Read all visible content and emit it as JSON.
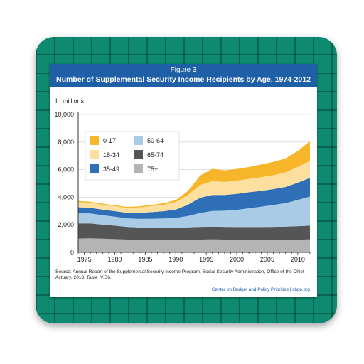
{
  "card": {
    "figure_label": "Figure 3",
    "title": "Number of Supplemental Security Income Recipients by Age, 1974-2012",
    "source": "Source: Annual Report of the Supplemental Security Income Program, Social Security Administration, Office of the Chief Actuary, 2013. Table IV.B6.",
    "credit": "Center on Budget and Policy Priorities | cbpp.org"
  },
  "chart_data": {
    "type": "area",
    "stacked": true,
    "ylabel": "In millions",
    "ylim": [
      0,
      10000
    ],
    "yticks": [
      0,
      2000,
      4000,
      6000,
      8000,
      10000
    ],
    "ytick_labels": [
      "0",
      "2,000",
      "4,000",
      "6,000",
      "8,000",
      "10,000"
    ],
    "xlim": [
      1974,
      2012
    ],
    "xticks": [
      1975,
      1980,
      1985,
      1990,
      1995,
      2000,
      2005,
      2010
    ],
    "grid": true,
    "legend_position": "top-left",
    "x": [
      1974,
      1976,
      1978,
      1980,
      1982,
      1984,
      1986,
      1988,
      1990,
      1992,
      1994,
      1996,
      1998,
      2000,
      2002,
      2004,
      2006,
      2008,
      2010,
      2012
    ],
    "series": [
      {
        "name": "75+",
        "color": "#b4b4b4",
        "values": [
          1000,
          1020,
          990,
          960,
          930,
          930,
          920,
          910,
          910,
          920,
          930,
          940,
          930,
          920,
          910,
          900,
          900,
          910,
          920,
          940
        ]
      },
      {
        "name": "65-74",
        "color": "#555555",
        "values": [
          1100,
          1080,
          1020,
          980,
          920,
          880,
          880,
          880,
          880,
          900,
          920,
          930,
          920,
          920,
          930,
          940,
          950,
          960,
          980,
          1000
        ]
      },
      {
        "name": "50-64",
        "color": "#a9cbe6",
        "values": [
          750,
          720,
          690,
          650,
          620,
          620,
          640,
          670,
          710,
          820,
          1010,
          1130,
          1170,
          1240,
          1360,
          1470,
          1590,
          1700,
          1900,
          2110
        ]
      },
      {
        "name": "35-49",
        "color": "#2e6fb8",
        "values": [
          420,
          410,
          400,
          400,
          400,
          440,
          480,
          530,
          600,
          820,
          1100,
          1160,
          1140,
          1160,
          1160,
          1150,
          1150,
          1170,
          1250,
          1350
        ]
      },
      {
        "name": "18-34",
        "color": "#fde0a0",
        "values": [
          380,
          370,
          360,
          360,
          360,
          390,
          430,
          470,
          550,
          700,
          930,
          1000,
          950,
          960,
          970,
          990,
          1010,
          1050,
          1150,
          1250
        ]
      },
      {
        "name": "0-17",
        "color": "#f7b529",
        "values": [
          80,
          70,
          70,
          70,
          70,
          80,
          90,
          100,
          140,
          300,
          680,
          900,
          830,
          850,
          860,
          920,
          960,
          1020,
          1150,
          1410
        ]
      }
    ],
    "legend_order": [
      "0-17",
      "50-64",
      "18-34",
      "65-74",
      "35-49",
      "75+"
    ]
  }
}
